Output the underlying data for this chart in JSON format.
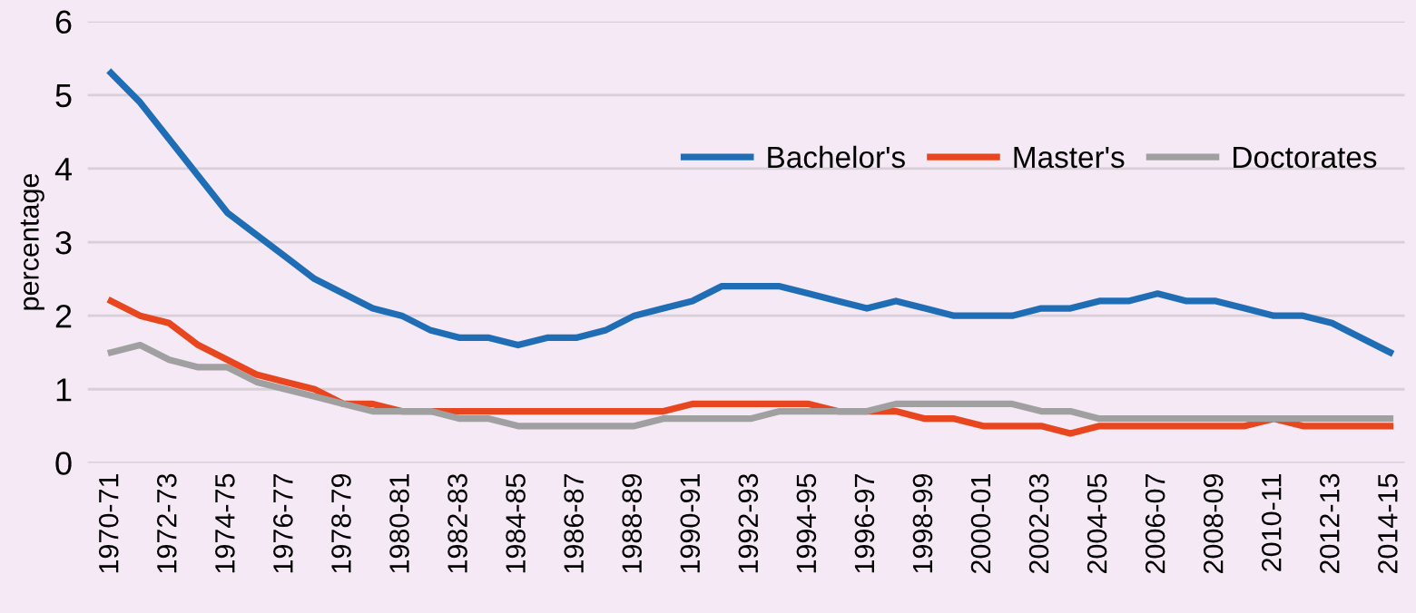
{
  "chart_data": {
    "type": "line",
    "ylabel": "percentage",
    "categories": [
      "1970-71",
      null,
      "1972-73",
      null,
      "1974-75",
      null,
      "1976-77",
      null,
      "1978-79",
      null,
      "1980-81",
      null,
      "1982-83",
      null,
      "1984-85",
      null,
      "1986-87",
      null,
      "1988-89",
      null,
      "1990-91",
      null,
      "1992-93",
      null,
      "1994-95",
      null,
      "1996-97",
      null,
      "1998-99",
      null,
      "2000-01",
      null,
      "2002-03",
      null,
      "2004-05",
      null,
      "2006-07",
      null,
      "2008-09",
      null,
      "2010-11",
      null,
      "2012-13",
      null,
      "2014-15"
    ],
    "series": [
      {
        "name": "Bachelor's",
        "color": "#1f6db5",
        "values": [
          5.3,
          4.9,
          4.4,
          3.9,
          3.4,
          3.1,
          2.8,
          2.5,
          2.3,
          2.1,
          2.0,
          1.8,
          1.7,
          1.7,
          1.6,
          1.7,
          1.7,
          1.8,
          2.0,
          2.1,
          2.2,
          2.4,
          2.4,
          2.4,
          2.3,
          2.2,
          2.1,
          2.2,
          2.1,
          2.0,
          2.0,
          2.0,
          2.1,
          2.1,
          2.2,
          2.2,
          2.3,
          2.2,
          2.2,
          2.1,
          2.0,
          2.0,
          1.9,
          1.7,
          1.5
        ]
      },
      {
        "name": "Master's",
        "color": "#e8461e",
        "values": [
          2.2,
          2.0,
          1.9,
          1.6,
          1.4,
          1.2,
          1.1,
          1.0,
          0.8,
          0.8,
          0.7,
          0.7,
          0.7,
          0.7,
          0.7,
          0.7,
          0.7,
          0.7,
          0.7,
          0.7,
          0.8,
          0.8,
          0.8,
          0.8,
          0.8,
          0.7,
          0.7,
          0.7,
          0.6,
          0.6,
          0.5,
          0.5,
          0.5,
          0.4,
          0.5,
          0.5,
          0.5,
          0.5,
          0.5,
          0.5,
          0.6,
          0.5,
          0.5,
          0.5,
          0.5
        ]
      },
      {
        "name": "Doctorates",
        "color": "#a0a0a0",
        "values": [
          1.5,
          1.6,
          1.4,
          1.3,
          1.3,
          1.1,
          1.0,
          0.9,
          0.8,
          0.7,
          0.7,
          0.7,
          0.6,
          0.6,
          0.5,
          0.5,
          0.5,
          0.5,
          0.5,
          0.6,
          0.6,
          0.6,
          0.6,
          0.7,
          0.7,
          0.7,
          0.7,
          0.8,
          0.8,
          0.8,
          0.8,
          0.8,
          0.7,
          0.7,
          0.6,
          0.6,
          0.6,
          0.6,
          0.6,
          0.6,
          0.6,
          0.6,
          0.6,
          0.6,
          0.6
        ]
      }
    ],
    "ylim": [
      0,
      6
    ],
    "yticks": [
      0,
      1,
      2,
      3,
      4,
      5,
      6
    ],
    "grid": "y",
    "legend": "top right",
    "marker": "none",
    "line_style": "solid"
  }
}
